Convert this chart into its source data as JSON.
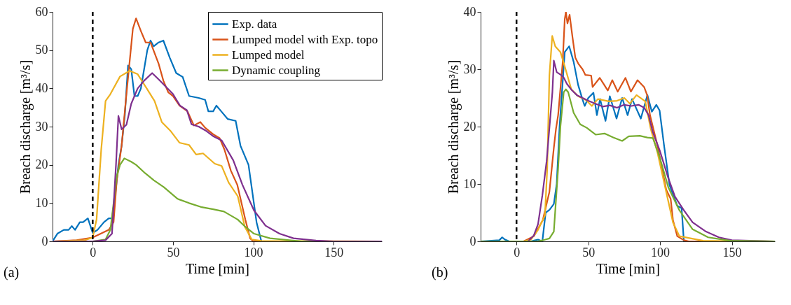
{
  "chart_data": [
    {
      "type": "line",
      "xlabel": "Time [min]",
      "ylabel": "Breach discharge [m³/s]",
      "xlim": [
        -25,
        180
      ],
      "xticks": [
        0,
        50,
        100,
        150
      ],
      "ylim": [
        0,
        60
      ],
      "yticks": [
        0,
        10,
        20,
        30,
        40,
        50,
        60
      ],
      "grid": false,
      "legend": "top right",
      "line_style": "solid",
      "annotations": [
        "(a)"
      ],
      "ref_lines": [
        {
          "axis": "x",
          "value": 0,
          "color": "#000000",
          "line_style": "dashed"
        }
      ],
      "series": [
        {
          "name": "Exp. data",
          "color": "#0072bd",
          "x": [
            -25,
            -22,
            -18,
            -15,
            -13,
            -11,
            -8,
            -6,
            -3,
            0,
            3,
            7,
            10,
            12,
            14,
            16,
            18,
            20,
            22,
            24,
            26,
            28,
            30,
            32,
            34,
            36,
            38,
            41,
            44,
            48,
            52,
            56,
            60,
            66,
            70,
            72,
            75,
            77,
            80,
            84,
            89,
            92,
            97,
            99,
            102,
            105,
            180
          ],
          "values": [
            0,
            2,
            3,
            3,
            4,
            3,
            5,
            5,
            6,
            2.2,
            3,
            5,
            6,
            6,
            12,
            20,
            25,
            33,
            46,
            45,
            38,
            38,
            40,
            45,
            50,
            52.5,
            51,
            52,
            52.5,
            48,
            44,
            43,
            38,
            37.5,
            37,
            34,
            34,
            35.5,
            34,
            32,
            31.5,
            25,
            20,
            14,
            5,
            0,
            0
          ]
        },
        {
          "name": "Lumped model with Exp. topo",
          "color": "#d95319",
          "x": [
            -25,
            -10,
            0,
            10,
            13,
            15,
            18,
            21,
            25,
            27,
            30,
            33,
            36,
            41,
            44,
            47,
            50,
            54,
            59,
            63,
            67,
            70,
            75,
            79,
            82,
            86,
            90,
            95,
            98,
            100,
            180
          ],
          "values": [
            0,
            0.3,
            1,
            3,
            5,
            16,
            25,
            38.5,
            55.6,
            58.3,
            55,
            52,
            52,
            46.5,
            42,
            39,
            38,
            35.5,
            34,
            30.3,
            31.2,
            29.7,
            28,
            27,
            24,
            18.5,
            14.8,
            5.7,
            0.8,
            0,
            0
          ]
        },
        {
          "name": "Lumped model",
          "color": "#edb120",
          "x": [
            -25,
            -5,
            0,
            2.4,
            5.3,
            8,
            11,
            17,
            23,
            28,
            33,
            38.5,
            43,
            48.6,
            54,
            60,
            64.4,
            68.7,
            76,
            80.3,
            84.6,
            90.3,
            94.7,
            99,
            105,
            180
          ],
          "values": [
            0,
            0.3,
            1,
            5.7,
            24,
            36.7,
            38.5,
            43.1,
            44.6,
            43.7,
            40.4,
            36.7,
            31.2,
            28.8,
            25.8,
            25.2,
            22.7,
            23,
            20.3,
            19.7,
            15.4,
            11.8,
            3.8,
            0.5,
            0.1,
            0
          ]
        },
        {
          "color": "#7e2f8e",
          "x": [
            -25,
            0,
            8,
            12,
            14.5,
            16,
            18,
            21,
            24,
            28,
            32,
            37,
            41.4,
            50,
            54.3,
            58.6,
            61.5,
            66,
            70.2,
            75,
            80.3,
            87.5,
            93.2,
            100.4,
            107.6,
            116.3,
            125,
            139,
            150,
            180
          ],
          "values": [
            0,
            0,
            0.3,
            2,
            20,
            32.8,
            29.3,
            30.5,
            36,
            40,
            42,
            44,
            42.2,
            38.5,
            35.5,
            34.3,
            30.6,
            30,
            29,
            27.5,
            26.4,
            21.2,
            14.8,
            8.1,
            4.1,
            2,
            0.8,
            0.2,
            0,
            0
          ]
        },
        {
          "name": "Dynamic coupling",
          "color": "#77ac30",
          "x": [
            -25,
            0,
            8,
            11,
            13,
            15,
            17,
            19.7,
            24,
            27,
            32.7,
            38,
            44.2,
            52.9,
            60,
            67.3,
            75,
            81.7,
            90.3,
            95,
            100.4,
            110.4,
            130,
            180
          ],
          "values": [
            0,
            0,
            0.5,
            3,
            10,
            17,
            20,
            21.7,
            20.8,
            20,
            17.8,
            16,
            14.2,
            11.1,
            10,
            9,
            8.4,
            7.8,
            5.7,
            3.8,
            2,
            0.8,
            0,
            0
          ]
        }
      ]
    },
    {
      "type": "line",
      "xlabel": "Time [min]",
      "ylabel": "Breach discharge [m³/s]",
      "xlim": [
        -25,
        180
      ],
      "xticks": [
        0,
        50,
        100,
        150
      ],
      "ylim": [
        0,
        40
      ],
      "yticks": [
        0,
        10,
        20,
        30,
        40
      ],
      "grid": false,
      "line_style": "solid",
      "annotations": [
        "(b)"
      ],
      "ref_lines": [
        {
          "axis": "x",
          "value": 0,
          "color": "#000000",
          "line_style": "dashed"
        }
      ],
      "series": [
        {
          "color": "#0072bd",
          "x": [
            -25,
            -12,
            -10,
            -8,
            -5,
            10,
            15,
            18,
            20.3,
            23,
            26,
            28,
            30,
            33.6,
            36.7,
            39.8,
            42.9,
            45.9,
            47.5,
            50,
            53.6,
            56,
            58.2,
            62,
            65,
            69.7,
            73.6,
            77.4,
            80.5,
            86.6,
            91.2,
            94.3,
            97.4,
            99.7,
            102.8,
            106.6,
            112,
            115,
            116.6,
            180
          ],
          "values": [
            0,
            0.2,
            0.7,
            0.3,
            0,
            0,
            0.3,
            0,
            5,
            5.5,
            6.5,
            10,
            20,
            33,
            34,
            31.3,
            27.3,
            24.8,
            23.6,
            25,
            25.9,
            22,
            24.8,
            21,
            25.3,
            21.4,
            25,
            22,
            24.8,
            21.4,
            25.5,
            22.6,
            23.8,
            22.8,
            16.7,
            9.8,
            6.2,
            5.8,
            0,
            0
          ]
        },
        {
          "color": "#d95319",
          "x": [
            -25,
            5,
            12.1,
            18.3,
            22.9,
            26,
            27.5,
            29,
            32.1,
            33.6,
            34.4,
            35.5,
            37,
            39,
            41,
            43,
            46,
            48,
            52,
            53,
            58,
            63.6,
            66.7,
            70.5,
            75.9,
            79.7,
            84.3,
            88.9,
            91,
            93,
            98.2,
            104.3,
            107.4,
            109,
            112,
            116.6,
            120,
            180
          ],
          "values": [
            0,
            0,
            0.9,
            3.7,
            8.6,
            16.3,
            19.6,
            22,
            31,
            38.7,
            40,
            38,
            39.5,
            35.6,
            32,
            31,
            30,
            29,
            28.9,
            26.9,
            28.5,
            26.3,
            28.1,
            26.1,
            28.5,
            26.1,
            28.1,
            26.9,
            25.5,
            22,
            16.7,
            9,
            7.4,
            3.7,
            0.9,
            0.2,
            0,
            0
          ]
        },
        {
          "color": "#edb120",
          "x": [
            -25,
            5,
            10,
            15,
            19.8,
            21.4,
            22.9,
            24.9,
            27,
            30.6,
            33.6,
            38.2,
            42.9,
            48.6,
            52.5,
            56.7,
            64.4,
            70,
            75.1,
            79,
            83.6,
            89.7,
            93.5,
            98.2,
            104.3,
            109,
            113.5,
            130,
            180
          ],
          "values": [
            0,
            0,
            0.3,
            2,
            4.5,
            12.7,
            28.9,
            35.8,
            34,
            33,
            30.5,
            26.5,
            25.3,
            24.6,
            23.6,
            24.8,
            24.4,
            24.5,
            25,
            24,
            25.5,
            24.4,
            19.6,
            15.5,
            8.6,
            3.3,
            0.9,
            0.1,
            0
          ]
        },
        {
          "color": "#7e2f8e",
          "x": [
            -25,
            8,
            12,
            15,
            18,
            21,
            23,
            25,
            26,
            28,
            31,
            33,
            35,
            38,
            42,
            46,
            50,
            55,
            60,
            65,
            70,
            75,
            80,
            85,
            89,
            92,
            95,
            99.7,
            105.8,
            110.4,
            116.6,
            122.7,
            132,
            141,
            150,
            180
          ],
          "values": [
            0,
            0,
            1,
            3,
            8,
            14,
            20,
            26,
            31.5,
            29.5,
            29,
            28.5,
            27.5,
            26.5,
            25.5,
            25,
            24.5,
            24,
            23.5,
            23.7,
            23.3,
            23.8,
            23.6,
            23.8,
            23.3,
            22,
            19,
            15.9,
            11,
            7.8,
            5.4,
            3.3,
            1.7,
            0.7,
            0.2,
            0
          ]
        },
        {
          "color": "#77ac30",
          "x": [
            -25,
            15,
            20,
            22.9,
            26,
            29,
            30.6,
            32.9,
            34.4,
            36,
            39.8,
            44.4,
            48.9,
            55.1,
            61.3,
            67.4,
            73.6,
            78.2,
            85.9,
            91.2,
            95,
            99.7,
            105.8,
            113.5,
            122.7,
            133.5,
            149,
            180
          ],
          "values": [
            0,
            0,
            0.3,
            0.5,
            1.7,
            12.7,
            20,
            26,
            26.5,
            26,
            22.4,
            20.4,
            19.8,
            18.6,
            18.8,
            18.1,
            17.5,
            18.3,
            18.4,
            18.1,
            18,
            14.7,
            9.4,
            5.4,
            2.1,
            0.7,
            0.1,
            0
          ]
        }
      ]
    }
  ]
}
